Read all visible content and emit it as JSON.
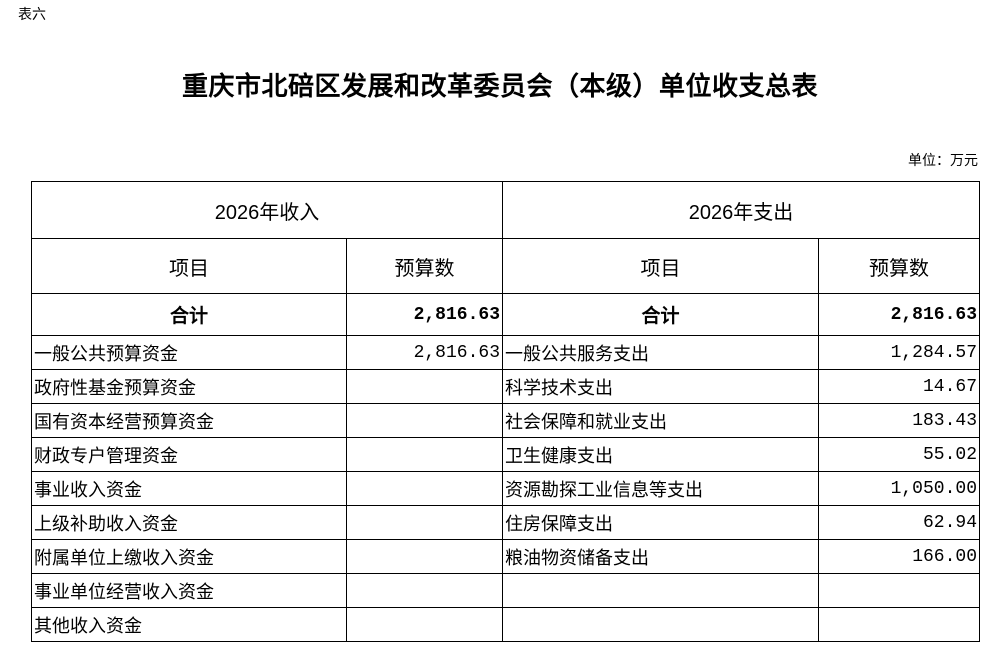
{
  "table_tag": "表六",
  "title": "重庆市北碚区发展和改革委员会（本级）单位收支总表",
  "unit": "单位：万元",
  "income_header": "2026年收入",
  "expense_header": "2026年支出",
  "col_item": "项目",
  "col_budget": "预算数",
  "total_label": "合计",
  "income_total": "2,816.63",
  "expense_total": "2,816.63",
  "rows": [
    {
      "income_item": "一般公共预算资金",
      "income_value": "2,816.63",
      "expense_item": "一般公共服务支出",
      "expense_value": "1,284.57"
    },
    {
      "income_item": "政府性基金预算资金",
      "income_value": "",
      "expense_item": "科学技术支出",
      "expense_value": "14.67"
    },
    {
      "income_item": "国有资本经营预算资金",
      "income_value": "",
      "expense_item": "社会保障和就业支出",
      "expense_value": "183.43"
    },
    {
      "income_item": "财政专户管理资金",
      "income_value": "",
      "expense_item": "卫生健康支出",
      "expense_value": "55.02"
    },
    {
      "income_item": "事业收入资金",
      "income_value": "",
      "expense_item": "资源勘探工业信息等支出",
      "expense_value": "1,050.00"
    },
    {
      "income_item": "上级补助收入资金",
      "income_value": "",
      "expense_item": "住房保障支出",
      "expense_value": "62.94"
    },
    {
      "income_item": "附属单位上缴收入资金",
      "income_value": "",
      "expense_item": "粮油物资储备支出",
      "expense_value": "166.00"
    },
    {
      "income_item": "事业单位经营收入资金",
      "income_value": "",
      "expense_item": "",
      "expense_value": ""
    },
    {
      "income_item": "其他收入资金",
      "income_value": "",
      "expense_item": "",
      "expense_value": ""
    }
  ]
}
